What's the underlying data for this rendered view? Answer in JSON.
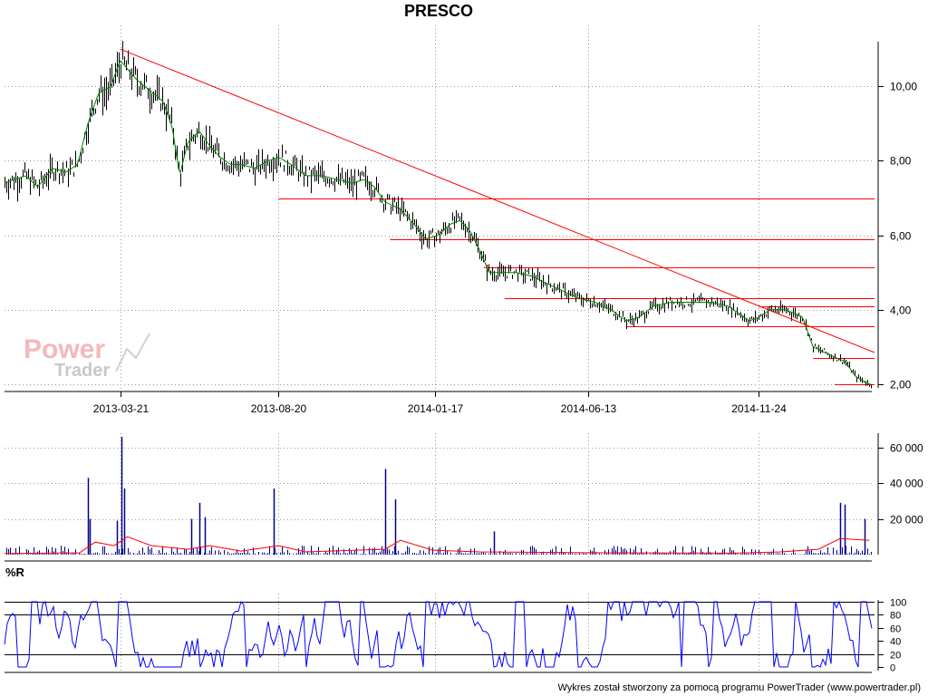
{
  "chart_data": [
    {
      "type": "line",
      "panel": "price",
      "title": "PRESCO",
      "x_tick_labels": [
        "2013-03-21",
        "2013-08-20",
        "2014-01-17",
        "2014-06-13",
        "2014-11-24"
      ],
      "y_tick_labels": [
        "2,00",
        "4,00",
        "6,00",
        "8,00",
        "10,00"
      ],
      "y_ticks": [
        2,
        4,
        6,
        8,
        10
      ],
      "ylim": [
        1.9,
        11.2
      ],
      "grid": true,
      "x_date_range": [
        "2012-11-30",
        "2015-03-15"
      ],
      "price_series": [
        [
          "2012-11-30",
          7.4
        ],
        [
          "2012-12-10",
          7.5
        ],
        [
          "2012-12-20",
          7.6
        ],
        [
          "2013-01-01",
          7.3
        ],
        [
          "2013-01-15",
          7.8
        ],
        [
          "2013-01-28",
          7.7
        ],
        [
          "2013-02-08",
          7.9
        ],
        [
          "2013-02-18",
          9.0
        ],
        [
          "2013-02-28",
          9.8
        ],
        [
          "2013-03-12",
          10.0
        ],
        [
          "2013-03-21",
          10.7
        ],
        [
          "2013-04-05",
          10.2
        ],
        [
          "2013-04-18",
          9.9
        ],
        [
          "2013-05-01",
          9.6
        ],
        [
          "2013-05-10",
          8.9
        ],
        [
          "2013-05-17",
          7.6
        ],
        [
          "2013-05-25",
          8.5
        ],
        [
          "2013-06-05",
          8.8
        ],
        [
          "2013-06-15",
          8.4
        ],
        [
          "2013-06-25",
          8.1
        ],
        [
          "2013-07-05",
          7.9
        ],
        [
          "2013-07-15",
          7.9
        ],
        [
          "2013-07-28",
          7.8
        ],
        [
          "2013-08-10",
          8.0
        ],
        [
          "2013-08-20",
          8.1
        ],
        [
          "2013-09-01",
          7.9
        ],
        [
          "2013-09-15",
          7.6
        ],
        [
          "2013-10-01",
          7.6
        ],
        [
          "2013-10-15",
          7.5
        ],
        [
          "2013-10-30",
          7.4
        ],
        [
          "2013-11-10",
          7.5
        ],
        [
          "2013-11-20",
          7.3
        ],
        [
          "2013-11-30",
          6.9
        ],
        [
          "2013-12-15",
          6.7
        ],
        [
          "2013-12-28",
          6.3
        ],
        [
          "2014-01-08",
          5.9
        ],
        [
          "2014-01-20",
          6.0
        ],
        [
          "2014-02-01",
          6.3
        ],
        [
          "2014-02-10",
          6.4
        ],
        [
          "2014-02-20",
          6.1
        ],
        [
          "2014-03-01",
          5.6
        ],
        [
          "2014-03-10",
          5.0
        ],
        [
          "2014-03-20",
          5.0
        ],
        [
          "2014-04-05",
          5.0
        ],
        [
          "2014-04-20",
          4.9
        ],
        [
          "2014-05-05",
          4.7
        ],
        [
          "2014-05-20",
          4.5
        ],
        [
          "2014-06-05",
          4.3
        ],
        [
          "2014-06-20",
          4.2
        ],
        [
          "2014-07-05",
          4.0
        ],
        [
          "2014-07-20",
          3.7
        ],
        [
          "2014-08-01",
          3.8
        ],
        [
          "2014-08-15",
          4.1
        ],
        [
          "2014-09-01",
          4.2
        ],
        [
          "2014-09-20",
          4.2
        ],
        [
          "2014-10-10",
          4.2
        ],
        [
          "2014-10-25",
          4.1
        ],
        [
          "2014-11-05",
          3.9
        ],
        [
          "2014-11-15",
          3.7
        ],
        [
          "2014-11-24",
          3.8
        ],
        [
          "2014-12-05",
          4.0
        ],
        [
          "2014-12-20",
          4.0
        ],
        [
          "2015-01-05",
          3.8
        ],
        [
          "2015-01-15",
          3.0
        ],
        [
          "2015-01-30",
          2.8
        ],
        [
          "2015-02-15",
          2.6
        ],
        [
          "2015-02-25",
          2.2
        ],
        [
          "2015-03-10",
          2.0
        ]
      ],
      "trendline": {
        "from": [
          "2013-03-21",
          11.0
        ],
        "to": [
          "2015-03-15",
          2.85
        ]
      },
      "support_levels": [
        {
          "level": 7.0,
          "from": "2013-08-20"
        },
        {
          "level": 5.9,
          "from": "2013-12-05"
        },
        {
          "level": 5.15,
          "from": "2014-03-05"
        },
        {
          "level": 4.3,
          "from": "2014-03-25"
        },
        {
          "level": 4.1,
          "from": "2014-11-24"
        },
        {
          "level": 3.55,
          "from": "2014-07-20"
        },
        {
          "level": 2.7,
          "from": "2015-01-15"
        },
        {
          "level": 2.0,
          "from": "2015-02-05"
        }
      ]
    },
    {
      "type": "bar",
      "panel": "volume",
      "y_tick_labels": [
        "20 000",
        "40 000",
        "60 000"
      ],
      "y_ticks": [
        20000,
        40000,
        60000
      ],
      "ylim": [
        0,
        68000
      ],
      "volume_spikes": [
        [
          "2013-02-18",
          43000
        ],
        [
          "2013-02-20",
          20000
        ],
        [
          "2013-03-18",
          19000
        ],
        [
          "2013-03-22",
          66000
        ],
        [
          "2013-03-25",
          37000
        ],
        [
          "2013-05-28",
          20000
        ],
        [
          "2013-06-05",
          29000
        ],
        [
          "2013-06-10",
          21000
        ],
        [
          "2013-08-15",
          37000
        ],
        [
          "2013-11-30",
          48000
        ],
        [
          "2013-12-10",
          31000
        ],
        [
          "2014-03-15",
          13000
        ],
        [
          "2015-02-10",
          29000
        ],
        [
          "2015-02-14",
          28000
        ],
        [
          "2015-03-05",
          20000
        ]
      ],
      "moving_average": [
        [
          "2012-11-30",
          600
        ],
        [
          "2013-02-10",
          1000
        ],
        [
          "2013-02-25",
          7000
        ],
        [
          "2013-03-15",
          5000
        ],
        [
          "2013-03-28",
          10000
        ],
        [
          "2013-04-20",
          5000
        ],
        [
          "2013-05-25",
          3000
        ],
        [
          "2013-06-15",
          5000
        ],
        [
          "2013-07-15",
          2000
        ],
        [
          "2013-08-20",
          5000
        ],
        [
          "2013-09-15",
          1500
        ],
        [
          "2013-11-30",
          3000
        ],
        [
          "2013-12-15",
          8000
        ],
        [
          "2014-01-15",
          2500
        ],
        [
          "2014-03-01",
          1500
        ],
        [
          "2014-07-01",
          1000
        ],
        [
          "2014-11-01",
          800
        ],
        [
          "2014-12-15",
          1500
        ],
        [
          "2015-01-20",
          3000
        ],
        [
          "2015-02-10",
          9000
        ],
        [
          "2015-03-10",
          8000
        ]
      ]
    },
    {
      "type": "line",
      "panel": "williams_r",
      "label": "%R",
      "y_tick_labels": [
        "0",
        "20",
        "40",
        "60",
        "80",
        "100"
      ],
      "y_ticks": [
        0,
        20,
        40,
        60,
        80,
        100
      ],
      "ylim": [
        0,
        100
      ],
      "reference_lines": [
        20,
        80,
        100
      ],
      "series_color": "#0000ff"
    }
  ],
  "footer": "Wykres został stworzony za pomocą programu PowerTrader (www.powertrader.pl)",
  "watermark": {
    "line1": "Power",
    "line2": "Trader"
  },
  "colors": {
    "price": "#000000",
    "ma": "#008000",
    "trend": "#ff0000",
    "support": "#ff0000",
    "volume": "#00008b",
    "volume_ma": "#ff0000",
    "wr": "#0000ff",
    "grid": "#999999"
  }
}
